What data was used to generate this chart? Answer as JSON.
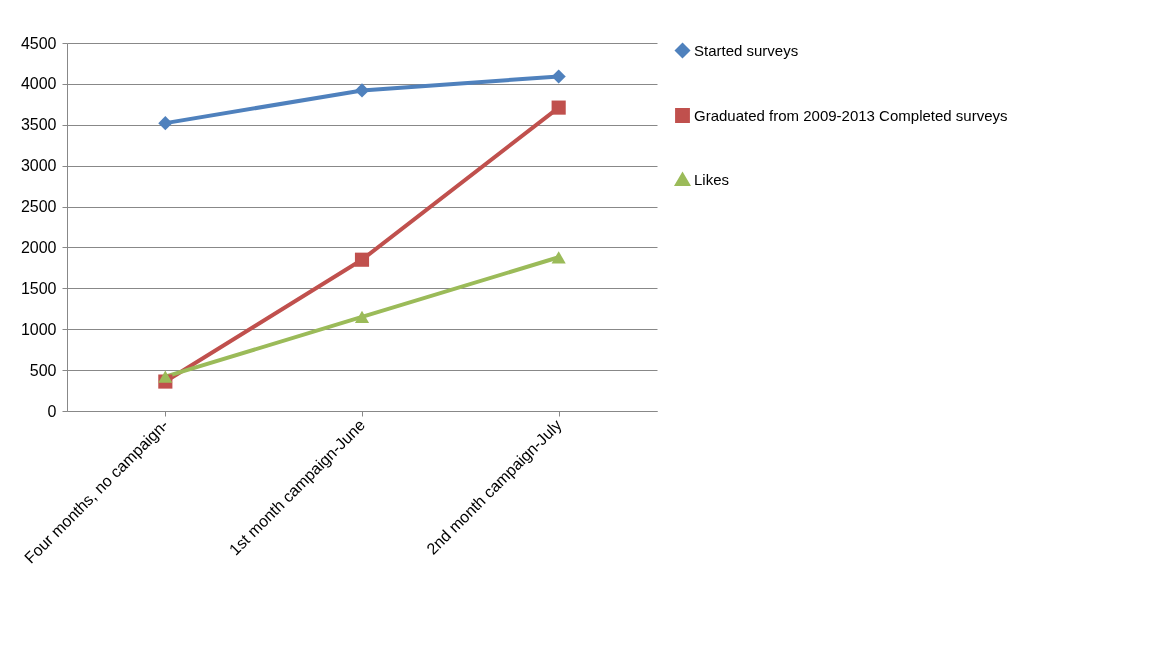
{
  "chart_data": {
    "type": "line",
    "categories": [
      "Four months, no campaign-",
      "1st month campaign-June",
      "2nd month campaign-July"
    ],
    "series": [
      {
        "name": "Started surveys",
        "color": "#4f81bd",
        "marker": "diamond",
        "values": [
          3520,
          3920,
          4090
        ]
      },
      {
        "name": "Graduated from 2009-2013 Completed surveys",
        "color": "#c0504d",
        "marker": "square",
        "values": [
          360,
          1850,
          3710
        ]
      },
      {
        "name": "Likes",
        "color": "#9bbb59",
        "marker": "triangle",
        "values": [
          420,
          1150,
          1880
        ]
      }
    ],
    "ylim": [
      0,
      4500
    ],
    "yticks": [
      0,
      500,
      1000,
      1500,
      2000,
      2500,
      3000,
      3500,
      4000,
      4500
    ],
    "grid": "y",
    "legend": "right",
    "line_style": "solid"
  }
}
